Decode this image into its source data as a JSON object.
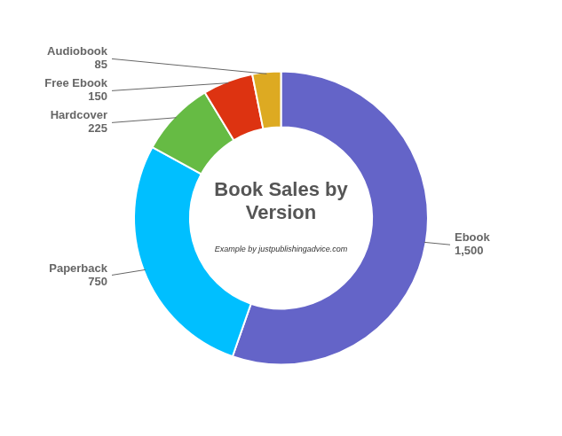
{
  "chart_data": {
    "type": "doughnut",
    "title": "Book Sales by\nVersion",
    "subtitle": "Example by justpublishingadvice.com",
    "categories": [
      "Ebook",
      "Paperback",
      "Hardcover",
      "Free Ebook",
      "Audiobook"
    ],
    "values": [
      1500,
      750,
      225,
      150,
      85
    ],
    "value_labels": [
      "1,500",
      "750",
      "225",
      "150",
      "85"
    ],
    "colors": [
      "#6464c8",
      "#00bfff",
      "#66bb44",
      "#dd3311",
      "#ddaa22"
    ],
    "data_labels": true
  }
}
